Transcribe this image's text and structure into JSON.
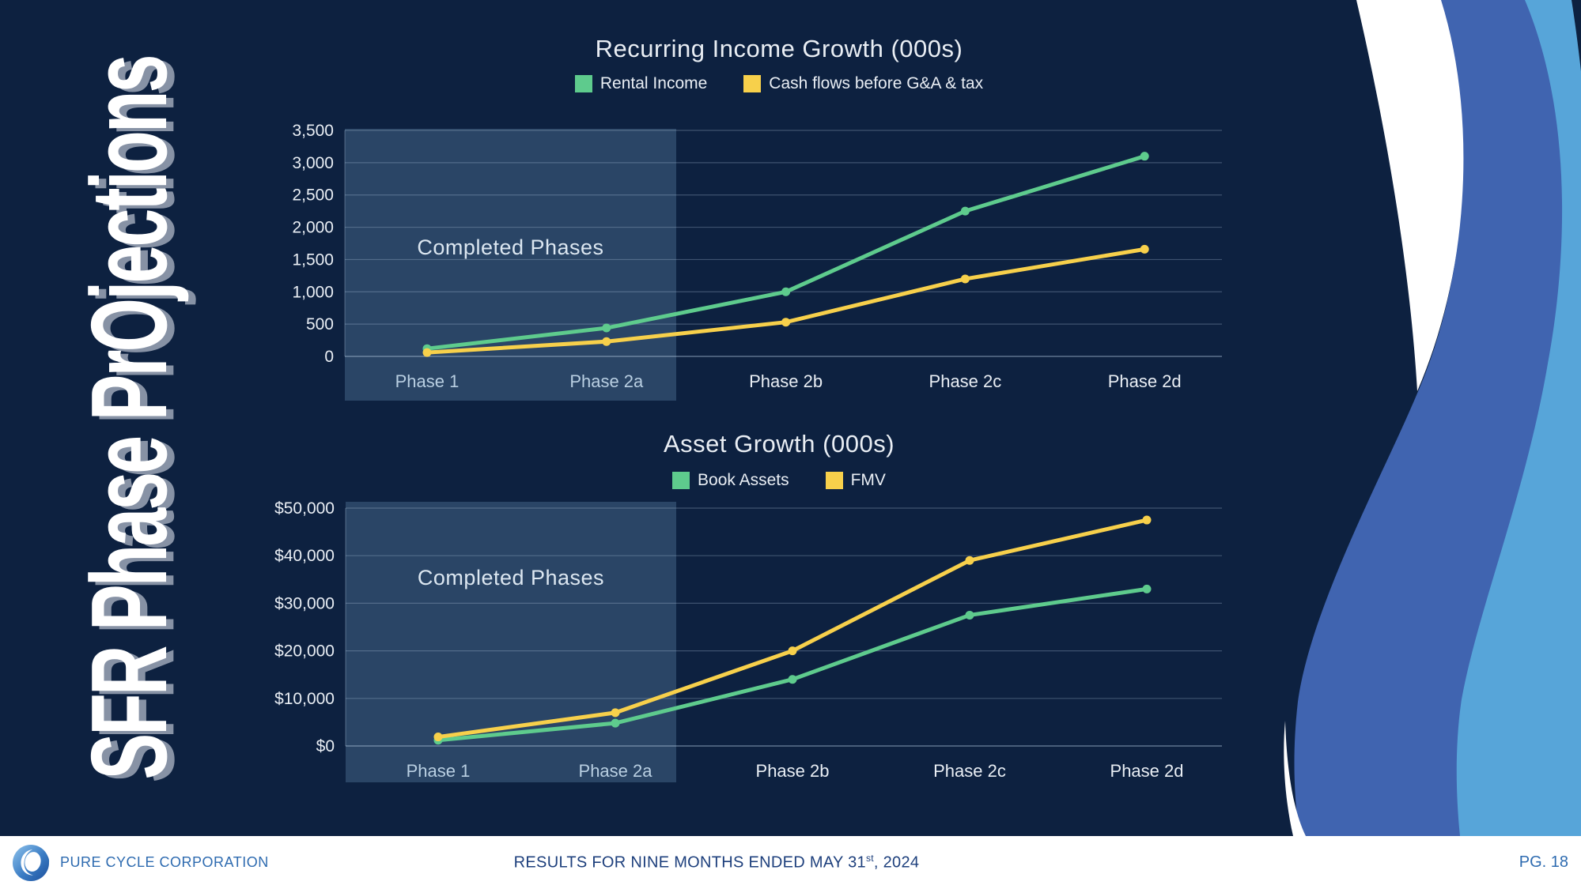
{
  "slide": {
    "side_title": "SFR Phase PrOjections"
  },
  "colors": {
    "background_navy": "#0d2140",
    "wave_white": "#ffffff",
    "wave_medium_blue": "#4064b0",
    "wave_light_blue": "#57a5d9",
    "completed_box": "#7aa8ce",
    "gridline": "#bcd2e8",
    "series_green": "#5ecb8d",
    "series_yellow": "#f7d04b",
    "tick_text": "#e9eef4",
    "phase_label_in_box": "#b9cfe2",
    "annotation_text": "#dce7f1",
    "brand_blue": "#2e6bb0",
    "footer_text_blue": "#1d3f7c"
  },
  "chart_data": [
    {
      "type": "line",
      "title": "Recurring Income Growth (000s)",
      "categories": [
        "Phase 1",
        "Phase 2a",
        "Phase 2b",
        "Phase 2c",
        "Phase 2d"
      ],
      "series": [
        {
          "name": "Rental Income",
          "color": "#5ecb8d",
          "values": [
            120,
            440,
            1000,
            2250,
            3100
          ]
        },
        {
          "name": "Cash flows before G&A & tax",
          "color": "#f7d04b",
          "values": [
            60,
            230,
            530,
            1200,
            1660
          ]
        }
      ],
      "ylim": [
        0,
        3500
      ],
      "ytick_step": 500,
      "ytick_labels": [
        "0",
        "500",
        "1,000",
        "1,500",
        "2,000",
        "2,500",
        "3,000",
        "3,500"
      ],
      "annotation": "Completed Phases",
      "annotation_categories": [
        "Phase 1",
        "Phase 2a"
      ],
      "grid": true,
      "legend_position": "top"
    },
    {
      "type": "line",
      "title": "Asset Growth (000s)",
      "categories": [
        "Phase 1",
        "Phase 2a",
        "Phase 2b",
        "Phase 2c",
        "Phase 2d"
      ],
      "series": [
        {
          "name": "Book Assets",
          "color": "#5ecb8d",
          "values": [
            1200,
            4800,
            14000,
            27500,
            33000
          ]
        },
        {
          "name": "FMV",
          "color": "#f7d04b",
          "values": [
            1900,
            7000,
            20000,
            39000,
            47500
          ]
        }
      ],
      "ylim": [
        0,
        50000
      ],
      "ytick_step": 10000,
      "ytick_labels": [
        "$0",
        "$10,000",
        "$20,000",
        "$30,000",
        "$40,000",
        "$50,000"
      ],
      "annotation": "Completed Phases",
      "annotation_categories": [
        "Phase 1",
        "Phase 2a"
      ],
      "grid": true,
      "legend_position": "top"
    }
  ],
  "footer": {
    "company": "PURE CYCLE CORPORATION",
    "center_prefix": "RESULTS FOR NINE MONTHS ENDED MAY 31",
    "center_sup": "st",
    "center_suffix": ", 2024",
    "page": "PG. 18"
  }
}
